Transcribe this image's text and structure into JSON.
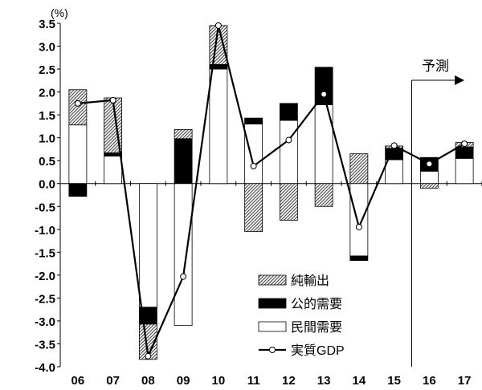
{
  "chart_data": {
    "type": "bar",
    "title": "",
    "unit_label": "(%)",
    "ylim": [
      -4.0,
      3.5
    ],
    "ytick_step": 0.5,
    "grid": false,
    "legend_position": "bottom-right",
    "categories": [
      "06",
      "07",
      "08",
      "09",
      "10",
      "11",
      "12",
      "13",
      "14",
      "15",
      "16",
      "17"
    ],
    "series": [
      {
        "name": "民間需要",
        "kind": "stacked-bar",
        "fill": "#ffffff",
        "values": [
          1.28,
          0.6,
          -2.7,
          -3.1,
          2.5,
          1.3,
          1.38,
          1.72,
          -1.58,
          0.52,
          0.27,
          0.55
        ]
      },
      {
        "name": "公的需要",
        "kind": "stacked-bar",
        "fill": "#000000",
        "values": [
          -0.28,
          0.07,
          -0.37,
          0.98,
          0.1,
          0.13,
          0.37,
          0.82,
          -0.1,
          0.25,
          0.3,
          0.25
        ]
      },
      {
        "name": "純輸出",
        "kind": "stacked-bar",
        "fill": "hatch",
        "values": [
          0.77,
          1.2,
          -0.77,
          0.2,
          0.85,
          -1.05,
          -0.8,
          -0.5,
          0.65,
          0.05,
          -0.1,
          0.1
        ]
      },
      {
        "name": "実質GDP",
        "kind": "line",
        "color": "#000000",
        "values": [
          1.75,
          1.82,
          -3.77,
          -2.03,
          3.45,
          0.38,
          0.95,
          1.95,
          -0.95,
          0.83,
          0.43,
          0.87
        ]
      }
    ],
    "forecast": {
      "label": "予測",
      "start_after": "15"
    }
  }
}
